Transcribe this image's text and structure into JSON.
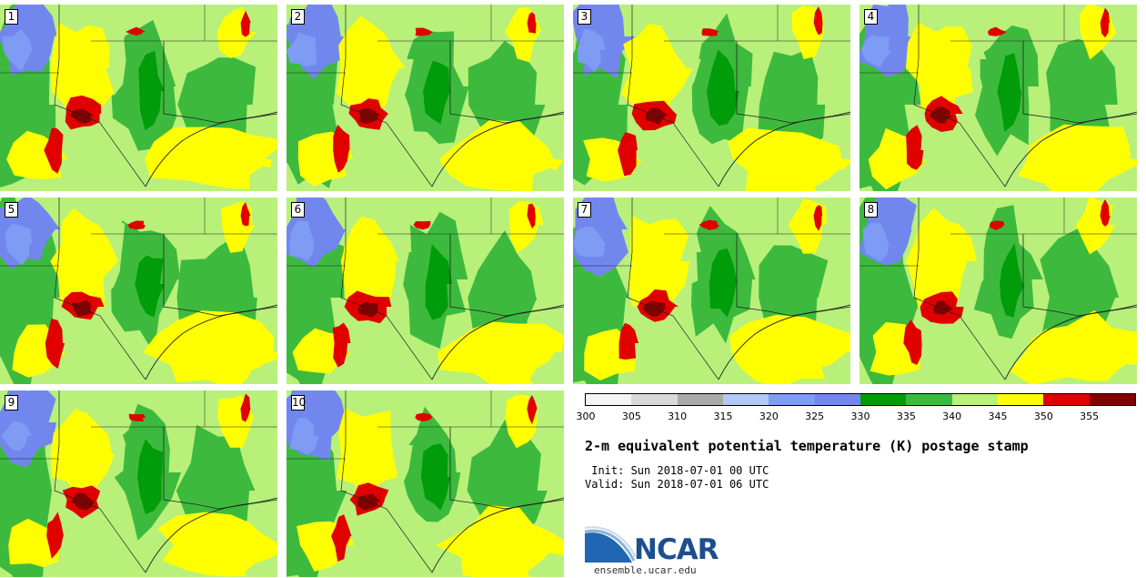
{
  "panels": [
    {
      "id": "1"
    },
    {
      "id": "2"
    },
    {
      "id": "3"
    },
    {
      "id": "4"
    },
    {
      "id": "5"
    },
    {
      "id": "6"
    },
    {
      "id": "7"
    },
    {
      "id": "8"
    },
    {
      "id": "9"
    },
    {
      "id": "10"
    }
  ],
  "colorbar": {
    "ticks": [
      "300",
      "305",
      "310",
      "315",
      "320",
      "325",
      "330",
      "335",
      "340",
      "345",
      "350",
      "355"
    ],
    "colors": [
      "#f4f4f4",
      "#d9d9d9",
      "#aaaaaa",
      "#b2c8f5",
      "#7f9cf5",
      "#7287ee",
      "#009c09",
      "#3dba3d",
      "#b8f07a",
      "#ffff00",
      "#e00000",
      "#800000"
    ]
  },
  "title": "2-m equivalent potential temperature (K) postage stamp",
  "init_line": " Init: Sun 2018-07-01 00 UTC",
  "valid_line": "Valid: Sun 2018-07-01 06 UTC",
  "logo": {
    "name": "NCAR",
    "url": "ensemble.ucar.edu"
  }
}
